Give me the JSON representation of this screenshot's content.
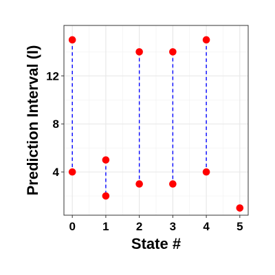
{
  "chart_data": {
    "type": "scatter",
    "xlabel": "State #",
    "ylabel": "Prediction Interval (I)",
    "xlim": [
      -0.25,
      5.25
    ],
    "ylim": [
      0.4,
      16.2
    ],
    "x_ticks": [
      0,
      1,
      2,
      3,
      4,
      5
    ],
    "x_tick_labels": [
      "0",
      "1",
      "2",
      "3",
      "4",
      "5"
    ],
    "y_ticks": [
      4,
      8,
      12
    ],
    "y_tick_labels": [
      "4",
      "8",
      "12"
    ],
    "grid": true,
    "intervals": [
      {
        "state": 0,
        "lower": 4,
        "upper": 15
      },
      {
        "state": 1,
        "lower": 2,
        "upper": 5
      },
      {
        "state": 2,
        "lower": 3,
        "upper": 14
      },
      {
        "state": 3,
        "lower": 3,
        "upper": 14
      },
      {
        "state": 4,
        "lower": 4,
        "upper": 15
      },
      {
        "state": 5,
        "lower": 1,
        "upper": 1
      }
    ],
    "point_color": "#ff0000",
    "line_color": "#0000ff"
  }
}
